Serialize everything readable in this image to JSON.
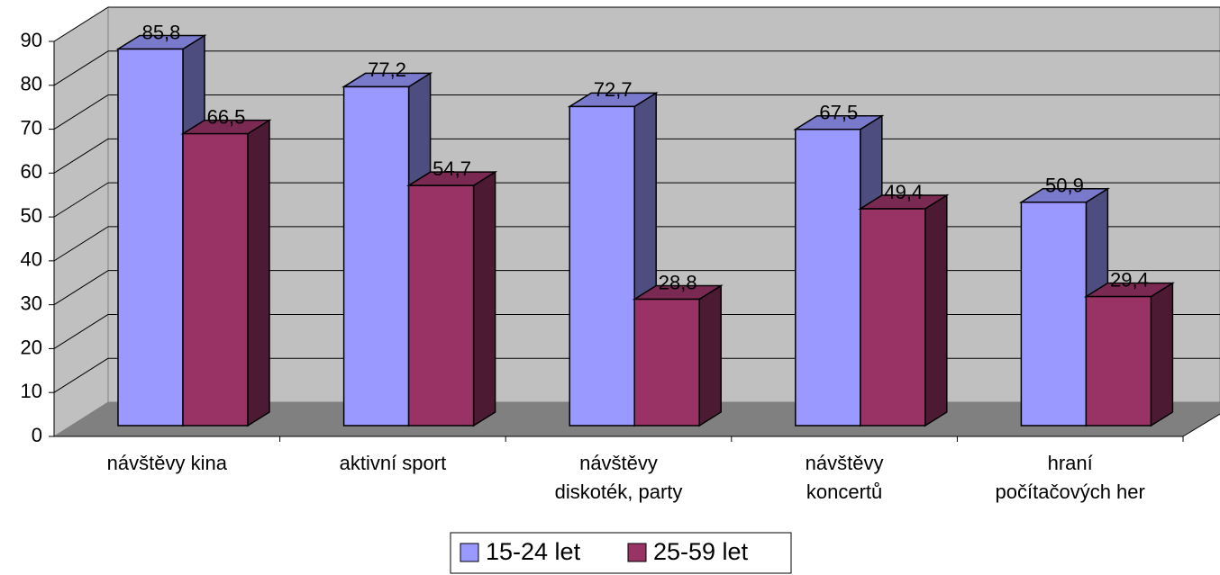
{
  "chart_data": {
    "type": "bar",
    "categories": [
      [
        "návštěvy kina"
      ],
      [
        "aktivní sport"
      ],
      [
        "návštěvy",
        "diskoték, party"
      ],
      [
        "návštěvy",
        "koncertů"
      ],
      [
        "hraní",
        "počítačových her"
      ]
    ],
    "series": [
      {
        "name": "15-24 let",
        "color": "#9999ff",
        "values": [
          85.8,
          77.2,
          72.7,
          67.5,
          50.9
        ],
        "value_labels": [
          "85,8",
          "77,2",
          "72,7",
          "67,5",
          "50,9"
        ]
      },
      {
        "name": "25-59 let",
        "color": "#993366",
        "values": [
          66.5,
          54.7,
          28.8,
          49.4,
          29.4
        ],
        "value_labels": [
          "66,5",
          "54,7",
          "28,8",
          "49,4",
          "29,4"
        ]
      }
    ],
    "ylim": [
      0,
      90
    ],
    "yticks": [
      0,
      10,
      20,
      30,
      40,
      50,
      60,
      70,
      80,
      90
    ],
    "grid": true
  }
}
